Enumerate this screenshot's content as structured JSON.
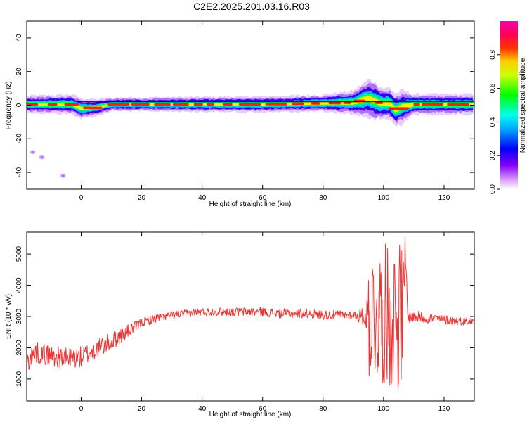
{
  "title": "C2E2.2025.201.03.16.R03",
  "chart_data": [
    {
      "type": "heatmap",
      "xlabel": "Height of straight line (km)",
      "ylabel": "Frequency (Hz)",
      "xlim": [
        -18,
        130
      ],
      "ylim": [
        -50,
        50
      ],
      "xticks": [
        0,
        20,
        40,
        60,
        80,
        100,
        120
      ],
      "yticks": [
        -40,
        -20,
        0,
        20,
        40
      ],
      "grid": false,
      "colorbar": {
        "label": "Normalized spectral amplitude",
        "range": [
          0,
          1
        ],
        "ticks": [
          0.0,
          0.2,
          0.4,
          0.6,
          0.8
        ],
        "colormap": [
          "#ff00ff",
          "#0000ff",
          "#00ffff",
          "#00ff00",
          "#ffff00",
          "#ff0000",
          "#ff00aa"
        ]
      },
      "band": {
        "center_freq_hz": [
          [
            -18,
            0.5
          ],
          [
            -3,
            0.5
          ],
          [
            0,
            -2
          ],
          [
            5,
            -1.5
          ],
          [
            10,
            0.5
          ],
          [
            60,
            0.5
          ],
          [
            90,
            1.5
          ],
          [
            95,
            4
          ],
          [
            99,
            1
          ],
          [
            102,
            1
          ],
          [
            104,
            -3
          ],
          [
            106,
            -1
          ],
          [
            110,
            0.5
          ],
          [
            130,
            0.5
          ]
        ],
        "width_hz": [
          [
            -18,
            5
          ],
          [
            0,
            6
          ],
          [
            10,
            4
          ],
          [
            80,
            5
          ],
          [
            90,
            7
          ],
          [
            96,
            12
          ],
          [
            100,
            9
          ],
          [
            106,
            10
          ],
          [
            110,
            6
          ],
          [
            130,
            6
          ]
        ]
      },
      "isolated_spots": [
        {
          "x": -16,
          "y": -28
        },
        {
          "x": -13,
          "y": -31
        },
        {
          "x": -6,
          "y": -42
        }
      ]
    },
    {
      "type": "line",
      "xlabel": "Height of straight line (km)",
      "ylabel": "SNR (10 * v/v)",
      "xlim": [
        -18,
        130
      ],
      "ylim": [
        300,
        5700
      ],
      "xticks": [
        0,
        20,
        40,
        60,
        80,
        100,
        120
      ],
      "yticks": [
        1000,
        2000,
        3000,
        4000,
        5000
      ],
      "grid": false,
      "series": [
        {
          "color": "#ee3333",
          "x": [
            -18,
            -15,
            -10,
            -5,
            0,
            5,
            10,
            15,
            20,
            25,
            30,
            35,
            40,
            45,
            50,
            55,
            60,
            65,
            70,
            75,
            80,
            85,
            90,
            93,
            95,
            96,
            97,
            98,
            99,
            100,
            101,
            102,
            103,
            104,
            105,
            106,
            107,
            108,
            110,
            115,
            120,
            125,
            130
          ],
          "y": [
            1550,
            1850,
            1750,
            1650,
            1700,
            1950,
            2200,
            2500,
            2800,
            2950,
            3050,
            3100,
            3150,
            3150,
            3150,
            3150,
            3150,
            3100,
            3100,
            3100,
            3050,
            3050,
            3050,
            3000,
            3000,
            2000,
            4500,
            1500,
            3800,
            2300,
            4200,
            1200,
            4900,
            1000,
            5300,
            1600,
            5600,
            3000,
            3000,
            2950,
            2900,
            2850,
            2850
          ],
          "noise_amplitude": [
            [
              -18,
              350
            ],
            [
              0,
              350
            ],
            [
              10,
              300
            ],
            [
              20,
              150
            ],
            [
              30,
              120
            ],
            [
              60,
              150
            ],
            [
              90,
              150
            ],
            [
              94,
              300
            ],
            [
              95,
              1100
            ],
            [
              106,
              1300
            ],
            [
              108,
              200
            ],
            [
              130,
              120
            ]
          ]
        }
      ]
    }
  ]
}
